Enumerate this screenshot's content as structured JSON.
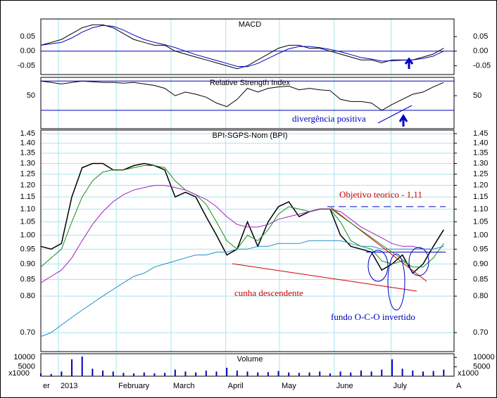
{
  "chart_data": [
    {
      "type": "line",
      "title": "MACD",
      "ylim": [
        -0.08,
        0.11
      ],
      "yticks": [
        0.05,
        {
          "value": 0,
          "label": "0.00"
        },
        -0.05
      ],
      "levels": [
        0
      ],
      "series": [
        {
          "name": "MACD",
          "color": "#000000",
          "values": [
            0.02,
            0.03,
            0.04,
            0.06,
            0.08,
            0.09,
            0.09,
            0.08,
            0.06,
            0.04,
            0.03,
            0.02,
            0.02,
            0.0,
            -0.01,
            -0.02,
            -0.03,
            -0.04,
            -0.05,
            -0.06,
            -0.05,
            -0.03,
            -0.01,
            0.01,
            0.02,
            0.02,
            0.01,
            0.01,
            0.0,
            -0.01,
            -0.02,
            -0.03,
            -0.03,
            -0.04,
            -0.03,
            -0.03,
            -0.03,
            -0.02,
            -0.01,
            0.01
          ]
        },
        {
          "name": "Signal",
          "color": "#0000c0",
          "values": [
            0.02,
            0.025,
            0.03,
            0.045,
            0.065,
            0.08,
            0.088,
            0.085,
            0.072,
            0.055,
            0.04,
            0.03,
            0.022,
            0.012,
            0.0,
            -0.012,
            -0.022,
            -0.032,
            -0.042,
            -0.052,
            -0.053,
            -0.042,
            -0.025,
            -0.008,
            0.008,
            0.016,
            0.016,
            0.012,
            0.006,
            -0.002,
            -0.012,
            -0.022,
            -0.027,
            -0.034,
            -0.033,
            -0.031,
            -0.03,
            -0.025,
            -0.017,
            0.0
          ]
        }
      ]
    },
    {
      "type": "line",
      "title": "Relative Strength Index",
      "ylim": [
        5,
        75
      ],
      "yticks": [
        50
      ],
      "levels": [
        70,
        30
      ],
      "annotations": [
        {
          "text": "divergência positiva"
        }
      ],
      "series": [
        {
          "name": "RSI",
          "color": "#000000",
          "values": [
            70,
            68,
            66,
            68,
            70,
            69,
            68,
            68,
            67,
            68,
            66,
            64,
            60,
            50,
            55,
            52,
            48,
            40,
            35,
            45,
            60,
            55,
            60,
            62,
            63,
            58,
            60,
            58,
            57,
            45,
            42,
            42,
            40,
            30,
            38,
            45,
            52,
            55,
            62,
            68
          ]
        }
      ]
    },
    {
      "type": "line",
      "title": "BPI-SGPS-Nom (BPI)",
      "log": true,
      "grid": true,
      "ylim": [
        0.653,
        1.469
      ],
      "yticks": [
        1.45,
        {
          "value": 1.4,
          "label": "1.40"
        },
        1.35,
        {
          "value": 1.3,
          "label": "1.30"
        },
        1.25,
        {
          "value": 1.2,
          "label": "1.20"
        },
        1.15,
        {
          "value": 1.1,
          "label": "1.10"
        },
        1.05,
        {
          "value": 1,
          "label": "1.00"
        },
        0.95,
        {
          "value": 0.9,
          "label": "0.90"
        },
        0.85,
        {
          "value": 0.8,
          "label": "0.80"
        },
        {
          "value": 0.7,
          "label": "0.70"
        }
      ],
      "target": 1.11,
      "neckline": 0.94,
      "annotations": [
        {
          "text": "Objetivo teorico - 1,11",
          "color": "#d00000"
        },
        {
          "text": "cunha descendente",
          "color": "#d00000"
        },
        {
          "text": "fundo  O-C-O invertido",
          "color": "#0000c0"
        }
      ],
      "series": [
        {
          "name": "BPI",
          "color": "#000000",
          "values": [
            0.96,
            0.95,
            0.97,
            1.15,
            1.28,
            1.3,
            1.3,
            1.27,
            1.27,
            1.29,
            1.3,
            1.29,
            1.27,
            1.15,
            1.17,
            1.15,
            1.07,
            1.0,
            0.93,
            0.95,
            1.05,
            0.96,
            1.05,
            1.11,
            1.13,
            1.07,
            1.09,
            1.1,
            1.1,
            1.0,
            0.96,
            0.95,
            0.94,
            0.88,
            0.9,
            0.93,
            0.87,
            0.9,
            0.96,
            1.02
          ]
        },
        {
          "name": "MA short",
          "color": "#1a8a1a",
          "values": [
            0.89,
            0.92,
            0.95,
            1.05,
            1.15,
            1.22,
            1.26,
            1.27,
            1.27,
            1.28,
            1.29,
            1.29,
            1.28,
            1.22,
            1.18,
            1.16,
            1.12,
            1.05,
            0.98,
            0.95,
            1.0,
            0.98,
            1.02,
            1.08,
            1.11,
            1.1,
            1.09,
            1.1,
            1.1,
            1.05,
            0.98,
            0.96,
            0.95,
            0.91,
            0.9,
            0.91,
            0.89,
            0.89,
            0.92,
            0.97
          ]
        },
        {
          "name": "MA medium",
          "color": "#a020c0",
          "values": [
            0.84,
            0.86,
            0.88,
            0.92,
            0.98,
            1.04,
            1.09,
            1.13,
            1.16,
            1.18,
            1.19,
            1.2,
            1.2,
            1.19,
            1.18,
            1.16,
            1.14,
            1.11,
            1.07,
            1.04,
            1.03,
            1.03,
            1.04,
            1.06,
            1.07,
            1.08,
            1.09,
            1.1,
            1.1,
            1.09,
            1.06,
            1.03,
            1.01,
            0.99,
            0.97,
            0.96,
            0.96,
            0.95,
            0.95,
            0.96
          ]
        },
        {
          "name": "MA long",
          "color": "#1e90c8",
          "values": [
            0.69,
            0.7,
            0.72,
            0.74,
            0.76,
            0.78,
            0.8,
            0.82,
            0.84,
            0.86,
            0.87,
            0.89,
            0.9,
            0.91,
            0.92,
            0.93,
            0.93,
            0.94,
            0.94,
            0.95,
            0.95,
            0.96,
            0.96,
            0.97,
            0.97,
            0.97,
            0.98,
            0.98,
            0.98,
            0.98,
            0.97,
            0.96,
            0.96,
            0.95,
            0.95,
            0.95,
            0.95,
            0.95,
            0.95,
            0.96
          ]
        }
      ]
    },
    {
      "type": "bar",
      "title": "Volume",
      "unit_label": "x1000",
      "color": "#0000c0",
      "ylim": [
        0,
        12000
      ],
      "yticks": [
        10000,
        5000
      ],
      "xlim": [
        0,
        40
      ],
      "xticks": [
        {
          "value": 0,
          "label": "er"
        },
        {
          "value": 1.7,
          "label": "2013"
        },
        {
          "value": 7.3,
          "label": "February"
        },
        {
          "value": 12.6,
          "label": "March"
        },
        {
          "value": 17.9,
          "label": "April"
        },
        {
          "value": 23.1,
          "label": "May"
        },
        {
          "value": 28.4,
          "label": "June"
        },
        {
          "value": 33.9,
          "label": "July"
        },
        {
          "value": 40,
          "label": "A"
        }
      ],
      "values": [
        1500,
        1200,
        2500,
        9000,
        10500,
        4000,
        3000,
        2500,
        1800,
        1500,
        2000,
        1500,
        1800,
        3500,
        2500,
        2000,
        3000,
        2500,
        4500,
        3000,
        2500,
        2000,
        2200,
        2800,
        2000,
        1800,
        2000,
        2500,
        1500,
        2500,
        2000,
        3000,
        2500,
        3500,
        9000,
        4000,
        3000,
        2500,
        2800,
        3500
      ]
    }
  ]
}
